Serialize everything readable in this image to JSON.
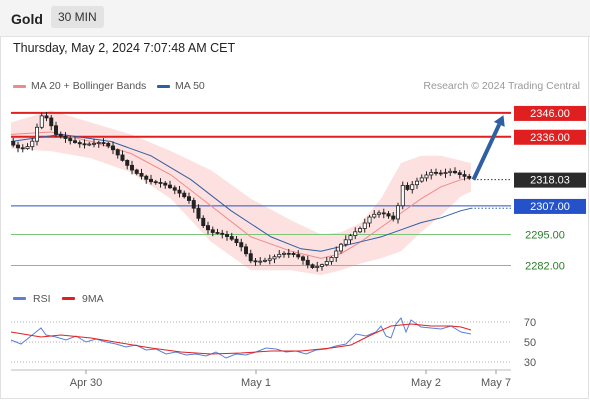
{
  "header": {
    "instrument": "Gold",
    "timeframe": "30 MIN"
  },
  "datetime": "Thursday, May 2, 2024 7:07:48 AM CET",
  "legend": {
    "items": [
      {
        "label": "MA 20 + Bollinger Bands",
        "color": "#f08a8a"
      },
      {
        "label": "MA 50",
        "color": "#2f5fa3"
      }
    ],
    "copyright": "Research © 2024 Trading Central"
  },
  "rsi_legend": {
    "items": [
      {
        "label": "RSI",
        "color": "#5b7fd6"
      },
      {
        "label": "9MA",
        "color": "#e02020"
      }
    ]
  },
  "colors": {
    "resistance": "#e02020",
    "pivot": "#2552c9",
    "support": "#7cc47a",
    "support_text": "#2a7d2a",
    "current_label_bg": "#2b2b2b",
    "bollinger_fill": "#fde0e0",
    "ma20": "#f08a8a",
    "ma50": "#2f5fa3",
    "forecast_arrow": "#2f5fa3",
    "bull_candle": "#ffffff",
    "bear_candle": "#222222"
  },
  "chart_data": [
    {
      "type": "candlestick",
      "title": "Gold 30 MIN",
      "ylim": [
        2273,
        2351
      ],
      "xlim": [
        0,
        100
      ],
      "x_ticks": [
        {
          "x": 15,
          "label": "Apr 30"
        },
        {
          "x": 49,
          "label": "May 1"
        },
        {
          "x": 83,
          "label": "May 2"
        },
        {
          "x": 97,
          "label": "May 7"
        }
      ],
      "levels": [
        {
          "value": 2346.0,
          "label": "2346.00",
          "kind": "resistance"
        },
        {
          "value": 2336.0,
          "label": "2336.00",
          "kind": "resistance"
        },
        {
          "value": 2318.03,
          "label": "2318.03",
          "kind": "current"
        },
        {
          "value": 2307.0,
          "label": "2307.00",
          "kind": "pivot"
        },
        {
          "value": 2295.0,
          "label": "2295.00",
          "kind": "support"
        },
        {
          "value": 2282.0,
          "label": "2282.00",
          "kind": "support"
        }
      ],
      "forecast_arrow": {
        "from": [
          92.5,
          2318.03
        ],
        "to": [
          98.5,
          2345
        ]
      },
      "price_path": [
        [
          0,
          2334
        ],
        [
          2,
          2332
        ],
        [
          4,
          2333
        ],
        [
          6,
          2344
        ],
        [
          7,
          2343
        ],
        [
          9,
          2336
        ],
        [
          12,
          2335
        ],
        [
          15,
          2334
        ],
        [
          18,
          2333
        ],
        [
          20,
          2330
        ],
        [
          22,
          2326
        ],
        [
          24,
          2323
        ],
        [
          26,
          2321
        ],
        [
          28,
          2318
        ],
        [
          30,
          2316
        ],
        [
          32,
          2313
        ],
        [
          34,
          2311
        ],
        [
          36,
          2309
        ],
        [
          38,
          2301
        ],
        [
          40,
          2297
        ],
        [
          42,
          2295
        ],
        [
          44,
          2292
        ],
        [
          46,
          2289
        ],
        [
          48,
          2284
        ],
        [
          50,
          2285
        ],
        [
          52,
          2286
        ],
        [
          54,
          2287
        ],
        [
          56,
          2286
        ],
        [
          58,
          2284
        ],
        [
          60,
          2281
        ],
        [
          62,
          2283
        ],
        [
          64,
          2286
        ],
        [
          66,
          2291
        ],
        [
          68,
          2294
        ],
        [
          70,
          2297
        ],
        [
          72,
          2303
        ],
        [
          74,
          2305
        ],
        [
          76,
          2303
        ],
        [
          77,
          2301
        ],
        [
          78,
          2317
        ],
        [
          79,
          2313
        ],
        [
          80,
          2315
        ],
        [
          82,
          2318
        ],
        [
          84,
          2321
        ],
        [
          86,
          2321
        ],
        [
          88,
          2322
        ],
        [
          90,
          2320
        ],
        [
          92,
          2318
        ]
      ],
      "series": [
        {
          "name": "MA 20",
          "values": [
            [
              0,
              2337
            ],
            [
              8,
              2338
            ],
            [
              16,
              2334
            ],
            [
              24,
              2329
            ],
            [
              32,
              2320
            ],
            [
              40,
              2307
            ],
            [
              48,
              2294
            ],
            [
              56,
              2288
            ],
            [
              62,
              2285
            ],
            [
              66,
              2287
            ],
            [
              70,
              2292
            ],
            [
              74,
              2298
            ],
            [
              78,
              2304
            ],
            [
              82,
              2310
            ],
            [
              86,
              2315
            ],
            [
              90,
              2318
            ],
            [
              92,
              2319
            ]
          ]
        },
        {
          "name": "MA 50",
          "values": [
            [
              0,
              2334
            ],
            [
              10,
              2337
            ],
            [
              20,
              2334
            ],
            [
              28,
              2328
            ],
            [
              36,
              2318
            ],
            [
              44,
              2305
            ],
            [
              52,
              2294
            ],
            [
              58,
              2289
            ],
            [
              62,
              2288
            ],
            [
              66,
              2290
            ],
            [
              70,
              2292
            ],
            [
              74,
              2294
            ],
            [
              78,
              2297
            ],
            [
              82,
              2300
            ],
            [
              86,
              2302
            ],
            [
              90,
              2305
            ],
            [
              92,
              2306
            ]
          ]
        }
      ],
      "bollinger": {
        "upper": [
          [
            0,
            2342
          ],
          [
            8,
            2347
          ],
          [
            16,
            2342
          ],
          [
            24,
            2337
          ],
          [
            32,
            2330
          ],
          [
            40,
            2322
          ],
          [
            48,
            2310
          ],
          [
            56,
            2301
          ],
          [
            62,
            2295
          ],
          [
            66,
            2296
          ],
          [
            70,
            2300
          ],
          [
            74,
            2310
          ],
          [
            78,
            2325
          ],
          [
            82,
            2328
          ],
          [
            86,
            2328
          ],
          [
            90,
            2326
          ],
          [
            92,
            2325
          ]
        ],
        "lower": [
          [
            0,
            2331
          ],
          [
            8,
            2330
          ],
          [
            16,
            2327
          ],
          [
            24,
            2321
          ],
          [
            32,
            2310
          ],
          [
            40,
            2292
          ],
          [
            48,
            2280
          ],
          [
            56,
            2280
          ],
          [
            62,
            2278
          ],
          [
            66,
            2280
          ],
          [
            70,
            2283
          ],
          [
            74,
            2285
          ],
          [
            78,
            2288
          ],
          [
            82,
            2296
          ],
          [
            86,
            2303
          ],
          [
            90,
            2311
          ],
          [
            92,
            2313
          ]
        ]
      }
    },
    {
      "type": "line",
      "title": "RSI",
      "ylim": [
        20,
        80
      ],
      "xlim": [
        0,
        100
      ],
      "y_ticks": [
        70,
        50,
        30
      ],
      "series": [
        {
          "name": "RSI",
          "values": [
            [
              0,
              52
            ],
            [
              2,
              48
            ],
            [
              4,
              56
            ],
            [
              6,
              64
            ],
            [
              7,
              57
            ],
            [
              9,
              55
            ],
            [
              11,
              52
            ],
            [
              13,
              56
            ],
            [
              15,
              50
            ],
            [
              17,
              53
            ],
            [
              19,
              50
            ],
            [
              21,
              48
            ],
            [
              23,
              45
            ],
            [
              25,
              47
            ],
            [
              27,
              42
            ],
            [
              29,
              43
            ],
            [
              31,
              38
            ],
            [
              33,
              40
            ],
            [
              35,
              37
            ],
            [
              37,
              38
            ],
            [
              39,
              36
            ],
            [
              41,
              40
            ],
            [
              43,
              34
            ],
            [
              45,
              38
            ],
            [
              47,
              37
            ],
            [
              49,
              40
            ],
            [
              51,
              44
            ],
            [
              53,
              43
            ],
            [
              55,
              40
            ],
            [
              57,
              41
            ],
            [
              59,
              38
            ],
            [
              61,
              42
            ],
            [
              63,
              43
            ],
            [
              65,
              46
            ],
            [
              67,
              48
            ],
            [
              69,
              58
            ],
            [
              71,
              56
            ],
            [
              73,
              60
            ],
            [
              74,
              66
            ],
            [
              75,
              56
            ],
            [
              76,
              54
            ],
            [
              77,
              68
            ],
            [
              78,
              74
            ],
            [
              79,
              60
            ],
            [
              80,
              72
            ],
            [
              82,
              65
            ],
            [
              84,
              64
            ],
            [
              86,
              63
            ],
            [
              88,
              66
            ],
            [
              90,
              60
            ],
            [
              92,
              58
            ]
          ]
        },
        {
          "name": "9MA",
          "values": [
            [
              0,
              60
            ],
            [
              6,
              55
            ],
            [
              10,
              57
            ],
            [
              16,
              54
            ],
            [
              22,
              49
            ],
            [
              28,
              44
            ],
            [
              34,
              40
            ],
            [
              40,
              38
            ],
            [
              46,
              39
            ],
            [
              52,
              41
            ],
            [
              58,
              41
            ],
            [
              64,
              44
            ],
            [
              68,
              47
            ],
            [
              72,
              57
            ],
            [
              76,
              66
            ],
            [
              80,
              68
            ],
            [
              84,
              66
            ],
            [
              88,
              66
            ],
            [
              90,
              65
            ],
            [
              92,
              62
            ]
          ]
        }
      ]
    }
  ]
}
